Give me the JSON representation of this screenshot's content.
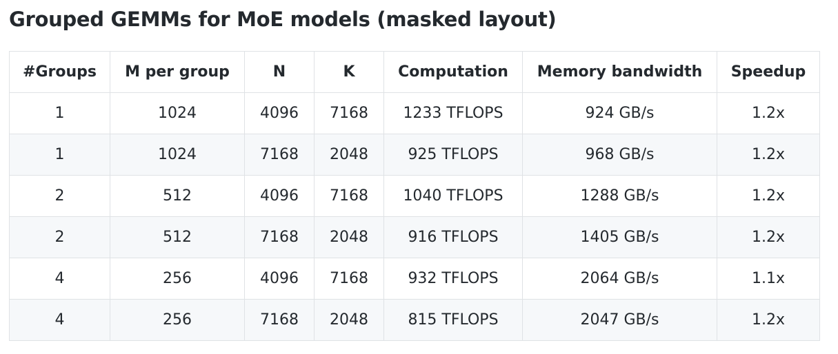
{
  "header": {
    "title": "Grouped GEMMs for MoE models (masked layout)"
  },
  "table": {
    "columns": [
      "#Groups",
      "M per group",
      "N",
      "K",
      "Computation",
      "Memory bandwidth",
      "Speedup"
    ],
    "rows": [
      [
        "1",
        "1024",
        "4096",
        "7168",
        "1233 TFLOPS",
        "924 GB/s",
        "1.2x"
      ],
      [
        "1",
        "1024",
        "7168",
        "2048",
        "925 TFLOPS",
        "968 GB/s",
        "1.2x"
      ],
      [
        "2",
        "512",
        "4096",
        "7168",
        "1040 TFLOPS",
        "1288 GB/s",
        "1.2x"
      ],
      [
        "2",
        "512",
        "7168",
        "2048",
        "916 TFLOPS",
        "1405 GB/s",
        "1.2x"
      ],
      [
        "4",
        "256",
        "4096",
        "7168",
        "932 TFLOPS",
        "2064 GB/s",
        "1.1x"
      ],
      [
        "4",
        "256",
        "7168",
        "2048",
        "815 TFLOPS",
        "2047 GB/s",
        "1.2x"
      ]
    ]
  }
}
